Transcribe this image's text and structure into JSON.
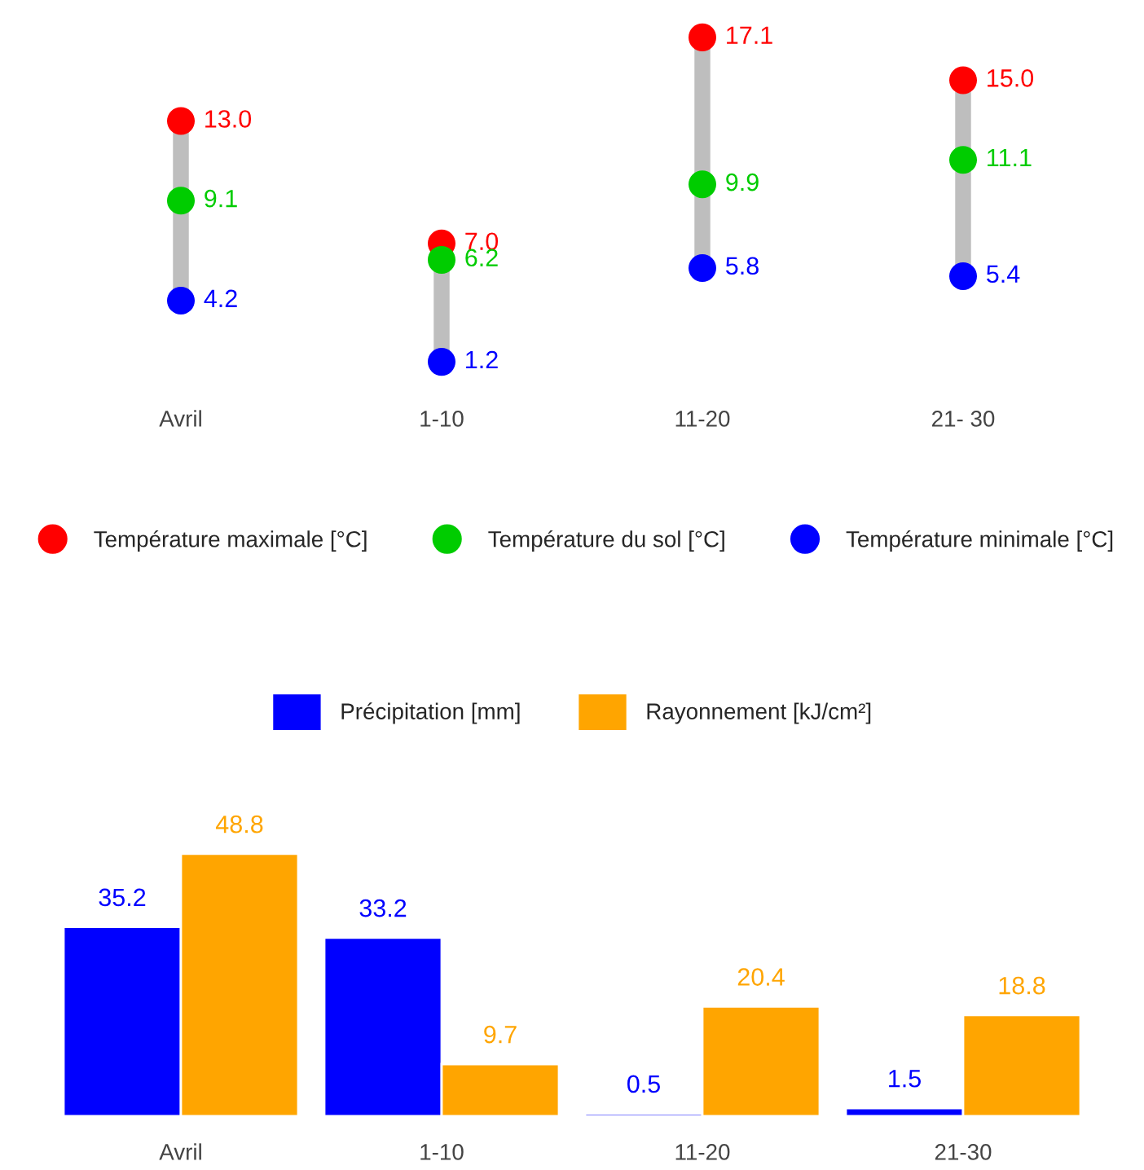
{
  "chart_data": [
    {
      "type": "scatter",
      "categories": [
        "Avril",
        "1-10",
        "11-20",
        "21- 30"
      ],
      "legend": "bottom",
      "marker": "circle",
      "series": [
        {
          "name": "Température maximale [°C]",
          "color": "#ff0000",
          "values": [
            13.0,
            7.0,
            17.1,
            15.0
          ],
          "value_labels": [
            "13.0",
            "7.0",
            "17.1",
            "15.0"
          ]
        },
        {
          "name": "Température du sol [°C]",
          "color": "#00cc00",
          "values": [
            9.1,
            6.2,
            9.9,
            11.1
          ],
          "value_labels": [
            "9.1",
            "6.2",
            "9.9",
            "11.1"
          ]
        },
        {
          "name": "Température minimale [°C]",
          "color": "#0000ff",
          "values": [
            4.2,
            1.2,
            5.8,
            5.4
          ],
          "value_labels": [
            "4.2",
            "1.2",
            "5.8",
            "5.4"
          ]
        }
      ]
    },
    {
      "type": "bar",
      "categories": [
        "Avril",
        "1-10",
        "11-20",
        "21-30"
      ],
      "legend": "top",
      "grid": false,
      "data_labels": true,
      "series": [
        {
          "name": "Précipitation [mm]",
          "color": "#0000ff",
          "values": [
            35.2,
            33.2,
            0.5,
            1.5
          ]
        },
        {
          "name": "Rayonnement [kJ/cm²]",
          "color": "#ffa500",
          "values": [
            48.8,
            9.7,
            20.4,
            18.8
          ]
        }
      ]
    }
  ]
}
